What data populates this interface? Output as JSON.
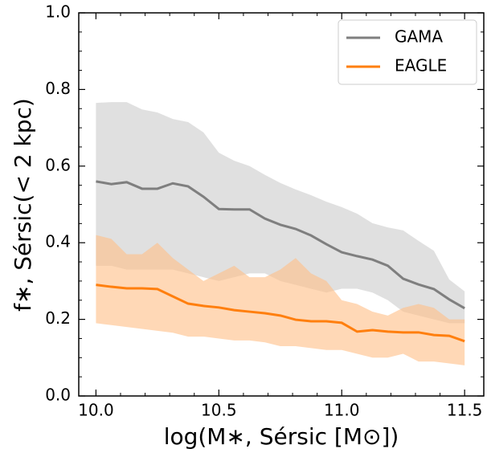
{
  "chart_data": {
    "type": "band-line",
    "xlabel": "log(M∗, Sérsic [M⊙])",
    "ylabel": "f∗, Sérsic(< 2 kpc)",
    "x": [
      10.0,
      10.0625,
      10.125,
      10.1875,
      10.25,
      10.3125,
      10.375,
      10.4375,
      10.5,
      10.5625,
      10.625,
      10.6875,
      10.75,
      10.8125,
      10.875,
      10.9375,
      11.0,
      11.0625,
      11.125,
      11.1875,
      11.25,
      11.3125,
      11.375,
      11.4375,
      11.5
    ],
    "series": [
      {
        "name": "GAMA",
        "color": "#7f7f7f",
        "band_color": "#cccccc",
        "values": [
          0.56,
          0.553,
          0.558,
          0.541,
          0.541,
          0.555,
          0.547,
          0.52,
          0.488,
          0.487,
          0.487,
          0.463,
          0.447,
          0.436,
          0.419,
          0.396,
          0.375,
          0.365,
          0.356,
          0.34,
          0.306,
          0.291,
          0.279,
          0.252,
          0.229
        ],
        "upper": [
          0.765,
          0.767,
          0.767,
          0.748,
          0.74,
          0.723,
          0.715,
          0.688,
          0.635,
          0.614,
          0.6,
          0.577,
          0.556,
          0.539,
          0.524,
          0.507,
          0.493,
          0.476,
          0.451,
          0.44,
          0.432,
          0.405,
          0.379,
          0.304,
          0.273
        ],
        "lower": [
          0.34,
          0.34,
          0.33,
          0.33,
          0.33,
          0.33,
          0.32,
          0.31,
          0.3,
          0.31,
          0.32,
          0.32,
          0.3,
          0.29,
          0.28,
          0.27,
          0.28,
          0.28,
          0.27,
          0.25,
          0.22,
          0.21,
          0.2,
          0.19,
          0.19
        ]
      },
      {
        "name": "EAGLE",
        "color": "#ff7f0e",
        "band_color": "#ffbe86",
        "values": [
          0.29,
          0.285,
          0.281,
          0.281,
          0.279,
          0.26,
          0.241,
          0.235,
          0.231,
          0.224,
          0.22,
          0.216,
          0.21,
          0.199,
          0.195,
          0.195,
          0.191,
          0.168,
          0.172,
          0.168,
          0.166,
          0.166,
          0.159,
          0.157,
          0.143
        ],
        "upper": [
          0.42,
          0.41,
          0.37,
          0.37,
          0.4,
          0.36,
          0.33,
          0.3,
          0.32,
          0.34,
          0.31,
          0.31,
          0.33,
          0.36,
          0.32,
          0.3,
          0.25,
          0.24,
          0.22,
          0.21,
          0.23,
          0.24,
          0.23,
          0.2,
          0.2
        ],
        "lower": [
          0.19,
          0.185,
          0.18,
          0.175,
          0.17,
          0.165,
          0.155,
          0.155,
          0.15,
          0.145,
          0.145,
          0.14,
          0.13,
          0.13,
          0.125,
          0.12,
          0.12,
          0.11,
          0.1,
          0.1,
          0.11,
          0.09,
          0.09,
          0.085,
          0.08
        ]
      }
    ],
    "xlim": [
      9.93,
      11.578
    ],
    "ylim": [
      0,
      1
    ],
    "xticks": [
      {
        "value": 10,
        "label": "10.0"
      },
      10.5,
      {
        "value": 11,
        "label": "11.0"
      },
      11.5
    ],
    "yticks": [
      {
        "value": 0,
        "label": "0.0"
      },
      0.2,
      0.4,
      0.6,
      0.8,
      {
        "value": 1,
        "label": "1.0"
      }
    ],
    "xminorticks": [
      10.1,
      10.2,
      10.3,
      10.4,
      10.6,
      10.7,
      10.8,
      10.9,
      11.1,
      11.2,
      11.3,
      11.4
    ],
    "yminorticks": [
      0.05,
      0.1,
      0.15,
      0.25,
      0.3,
      0.35,
      0.45,
      0.5,
      0.55,
      0.65,
      0.7,
      0.75,
      0.85,
      0.9,
      0.95
    ],
    "band_opacity": 0.6,
    "legend": "upper right"
  }
}
